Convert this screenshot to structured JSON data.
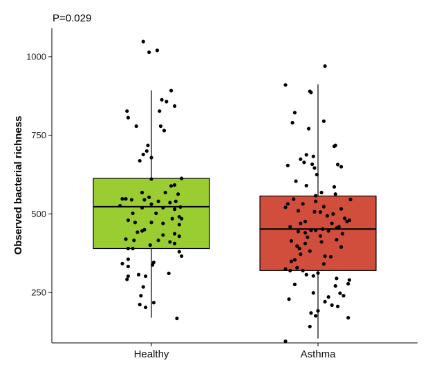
{
  "chart_data": {
    "type": "box",
    "title": "",
    "annotation": "P=0.029",
    "xlabel": "",
    "ylabel": "Observed bacterial richness",
    "ylim": [
      90,
      1090
    ],
    "yticks": [
      250,
      500,
      750,
      1000
    ],
    "ytick_labels": [
      "250",
      "500",
      "750",
      "1000"
    ],
    "grid": false,
    "categories": [
      "Healthy",
      "Asthma"
    ],
    "groups": [
      {
        "name": "Healthy",
        "color": "#9acd32",
        "stats": {
          "whisker_low": 170,
          "q1": 390,
          "median": 523,
          "q3": 613,
          "whisker_high": 893
        },
        "points": [
          [
            -0.07,
            1048
          ],
          [
            -0.02,
            1014
          ],
          [
            0.05,
            1020
          ],
          [
            0.17,
            892
          ],
          [
            0.09,
            863
          ],
          [
            0.13,
            857
          ],
          [
            0.2,
            843
          ],
          [
            0.07,
            827
          ],
          [
            -0.21,
            827
          ],
          [
            -0.2,
            806
          ],
          [
            0.08,
            779
          ],
          [
            -0.13,
            779
          ],
          [
            0.11,
            765
          ],
          [
            -0.03,
            718
          ],
          [
            -0.04,
            700
          ],
          [
            -0.07,
            689
          ],
          [
            0.0,
            679
          ],
          [
            -0.1,
            669
          ],
          [
            0.26,
            613
          ],
          [
            0.0,
            611
          ],
          [
            0.2,
            592
          ],
          [
            0.17,
            589
          ],
          [
            -0.08,
            568
          ],
          [
            0.12,
            568
          ],
          [
            0.23,
            563
          ],
          [
            -0.02,
            553
          ],
          [
            -0.25,
            548
          ],
          [
            -0.22,
            548
          ],
          [
            -0.06,
            545
          ],
          [
            -0.17,
            545
          ],
          [
            0.06,
            540
          ],
          [
            0.21,
            540
          ],
          [
            0.16,
            536
          ],
          [
            0.0,
            531
          ],
          [
            -0.27,
            526
          ],
          [
            0.25,
            522
          ],
          [
            -0.08,
            520
          ],
          [
            0.1,
            520
          ],
          [
            0.2,
            515
          ],
          [
            -0.16,
            502
          ],
          [
            0.04,
            502
          ],
          [
            0.24,
            491
          ],
          [
            0.26,
            485
          ],
          [
            0.18,
            485
          ],
          [
            -0.2,
            480
          ],
          [
            -0.14,
            473
          ],
          [
            0.0,
            473
          ],
          [
            0.1,
            470
          ],
          [
            0.24,
            466
          ],
          [
            -0.06,
            450
          ],
          [
            -0.08,
            446
          ],
          [
            -0.12,
            442
          ],
          [
            0.2,
            437
          ],
          [
            0.1,
            433
          ],
          [
            0.24,
            429
          ],
          [
            -0.22,
            420
          ],
          [
            -0.15,
            416
          ],
          [
            0.06,
            416
          ],
          [
            0.16,
            411
          ],
          [
            0.2,
            406
          ],
          [
            -0.01,
            401
          ],
          [
            -0.2,
            390
          ],
          [
            -0.16,
            390
          ],
          [
            0.24,
            380
          ],
          [
            0.26,
            366
          ],
          [
            -0.2,
            356
          ],
          [
            0.02,
            346
          ],
          [
            -0.25,
            342
          ],
          [
            0.01,
            338
          ],
          [
            -0.2,
            333
          ],
          [
            0.15,
            311
          ],
          [
            -0.11,
            307
          ],
          [
            -0.2,
            302
          ],
          [
            -0.21,
            292
          ],
          [
            -0.05,
            302
          ],
          [
            -0.07,
            268
          ],
          [
            -0.09,
            240
          ],
          [
            0.02,
            218
          ],
          [
            -0.1,
            212
          ],
          [
            -0.05,
            203
          ],
          [
            0.22,
            168
          ]
        ]
      },
      {
        "name": "Asthma",
        "color": "#d24e3c",
        "stats": {
          "whisker_low": 104,
          "q1": 320,
          "median": 452,
          "q3": 557,
          "whisker_high": 912
        },
        "points": [
          [
            0.06,
            970
          ],
          [
            -0.28,
            910
          ],
          [
            -0.07,
            890
          ],
          [
            -0.06,
            886
          ],
          [
            -0.2,
            822
          ],
          [
            0.05,
            795
          ],
          [
            -0.22,
            790
          ],
          [
            -0.08,
            771
          ],
          [
            0.15,
            718
          ],
          [
            0.14,
            715
          ],
          [
            -0.1,
            688
          ],
          [
            -0.04,
            683
          ],
          [
            -0.15,
            674
          ],
          [
            -0.26,
            654
          ],
          [
            -0.12,
            664
          ],
          [
            0.17,
            657
          ],
          [
            0.2,
            650
          ],
          [
            -0.05,
            658
          ],
          [
            -0.03,
            646
          ],
          [
            -0.01,
            625
          ],
          [
            -0.19,
            604
          ],
          [
            -0.1,
            590
          ],
          [
            0.14,
            586
          ],
          [
            0.03,
            568
          ],
          [
            0.15,
            563
          ],
          [
            -0.02,
            558
          ],
          [
            -0.21,
            547
          ],
          [
            0.28,
            546
          ],
          [
            -0.02,
            540
          ],
          [
            -0.13,
            532
          ],
          [
            -0.26,
            532
          ],
          [
            -0.28,
            521
          ],
          [
            0.05,
            523
          ],
          [
            0.2,
            516
          ],
          [
            -0.17,
            510
          ],
          [
            -0.03,
            507
          ],
          [
            0.02,
            506
          ],
          [
            0.13,
            500
          ],
          [
            0.08,
            494
          ],
          [
            0.23,
            486
          ],
          [
            0.27,
            480
          ],
          [
            0.25,
            476
          ],
          [
            -0.11,
            476
          ],
          [
            -0.15,
            470
          ],
          [
            0.12,
            470
          ],
          [
            -0.24,
            459
          ],
          [
            0.18,
            459
          ],
          [
            0.16,
            455
          ],
          [
            0.04,
            452
          ],
          [
            -0.06,
            448
          ],
          [
            -0.02,
            448
          ],
          [
            0.09,
            446
          ],
          [
            -0.17,
            444
          ],
          [
            -0.11,
            440
          ],
          [
            0.21,
            437
          ],
          [
            0.02,
            430
          ],
          [
            -0.09,
            426
          ],
          [
            0.16,
            418
          ],
          [
            -0.23,
            414
          ],
          [
            0.03,
            411
          ],
          [
            -0.11,
            406
          ],
          [
            -0.18,
            398
          ],
          [
            0.2,
            395
          ],
          [
            -0.16,
            390
          ],
          [
            -0.07,
            382
          ],
          [
            -0.15,
            372
          ],
          [
            0.06,
            366
          ],
          [
            0.11,
            364
          ],
          [
            -0.2,
            354
          ],
          [
            -0.23,
            349
          ],
          [
            0.05,
            341
          ],
          [
            -0.18,
            329
          ],
          [
            -0.28,
            325
          ],
          [
            -0.24,
            320
          ],
          [
            -0.13,
            320
          ],
          [
            0.0,
            312
          ],
          [
            -0.1,
            307
          ],
          [
            -0.04,
            303
          ],
          [
            0.16,
            295
          ],
          [
            0.27,
            290
          ],
          [
            0.26,
            278
          ],
          [
            -0.2,
            276
          ],
          [
            0.15,
            271
          ],
          [
            0.19,
            248
          ],
          [
            -0.04,
            249
          ],
          [
            0.22,
            240
          ],
          [
            0.09,
            236
          ],
          [
            -0.25,
            229
          ],
          [
            0.06,
            221
          ],
          [
            0.12,
            210
          ],
          [
            0.17,
            206
          ],
          [
            0.0,
            192
          ],
          [
            -0.06,
            185
          ],
          [
            -0.02,
            176
          ],
          [
            0.26,
            170
          ],
          [
            -0.07,
            142
          ],
          [
            -0.28,
            95
          ]
        ]
      }
    ]
  }
}
